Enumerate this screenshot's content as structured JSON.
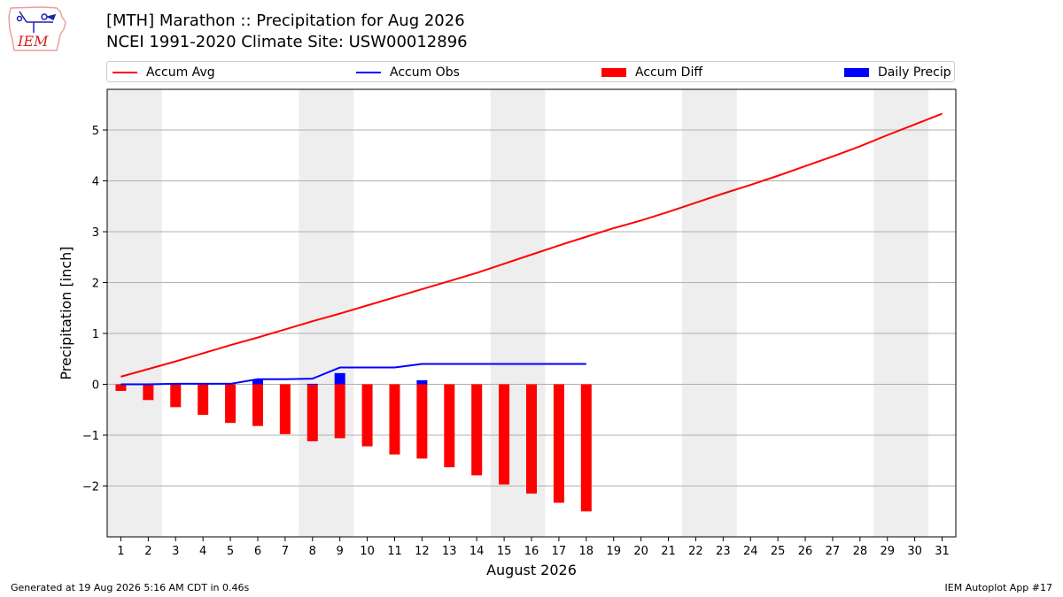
{
  "header": {
    "title_line1": "[MTH] Marathon :: Precipitation for Aug 2026",
    "title_line2": "NCEI 1991-2020 Climate Site: USW00012896",
    "logo_text": "IEM"
  },
  "legend": {
    "items": [
      {
        "label": "Accum Avg",
        "color": "#ff0000",
        "kind": "line"
      },
      {
        "label": "Accum Obs",
        "color": "#0000ff",
        "kind": "line"
      },
      {
        "label": "Accum Diff",
        "color": "#ff0000",
        "kind": "bar"
      },
      {
        "label": "Daily Precip",
        "color": "#0000ff",
        "kind": "bar"
      }
    ]
  },
  "footer": {
    "left": "Generated at 19 Aug 2026 5:16 AM CDT in 0.46s",
    "right": "IEM Autoplot App #17"
  },
  "chart_data": {
    "type": "bar",
    "xlabel": "August 2026",
    "ylabel": "Precipitation [inch]",
    "xlim": [
      0.5,
      31.5
    ],
    "ylim": [
      -3.0,
      5.8
    ],
    "x_ticks": [
      1,
      2,
      3,
      4,
      5,
      6,
      7,
      8,
      9,
      10,
      11,
      12,
      13,
      14,
      15,
      16,
      17,
      18,
      19,
      20,
      21,
      22,
      23,
      24,
      25,
      26,
      27,
      28,
      29,
      30,
      31
    ],
    "y_ticks": [
      -2,
      -1,
      0,
      1,
      2,
      3,
      4,
      5
    ],
    "y_tick_labels": [
      "−2",
      "−1",
      "0",
      "1",
      "2",
      "3",
      "4",
      "5"
    ],
    "grid": "horizontal",
    "weekend_shading": [
      [
        0.5,
        2.5
      ],
      [
        7.5,
        9.5
      ],
      [
        14.5,
        16.5
      ],
      [
        21.5,
        23.5
      ],
      [
        28.5,
        30.5
      ]
    ],
    "shade_color": "#eeeeee",
    "series": [
      {
        "name": "Accum Avg",
        "kind": "line",
        "color": "#ff0000",
        "x": [
          1,
          2,
          3,
          4,
          5,
          6,
          7,
          8,
          9,
          10,
          11,
          12,
          13,
          14,
          15,
          16,
          17,
          18,
          19,
          20,
          21,
          22,
          23,
          24,
          25,
          26,
          27,
          28,
          29,
          30,
          31
        ],
        "values": [
          0.15,
          0.3,
          0.45,
          0.61,
          0.77,
          0.92,
          1.08,
          1.24,
          1.39,
          1.55,
          1.71,
          1.87,
          2.03,
          2.19,
          2.37,
          2.55,
          2.73,
          2.9,
          3.07,
          3.22,
          3.39,
          3.57,
          3.75,
          3.92,
          4.1,
          4.29,
          4.48,
          4.68,
          4.9,
          5.11,
          5.32
        ]
      },
      {
        "name": "Accum Obs",
        "kind": "line",
        "color": "#0000ff",
        "x": [
          1,
          2,
          3,
          4,
          5,
          6,
          7,
          8,
          9,
          10,
          11,
          12,
          13,
          14,
          15,
          16,
          17,
          18
        ],
        "values": [
          0.0,
          0.0,
          0.01,
          0.01,
          0.01,
          0.1,
          0.1,
          0.11,
          0.33,
          0.33,
          0.33,
          0.4,
          0.4,
          0.4,
          0.4,
          0.4,
          0.4,
          0.4
        ]
      },
      {
        "name": "Accum Diff",
        "kind": "bar",
        "color": "#ff0000",
        "x": [
          1,
          2,
          3,
          4,
          5,
          6,
          7,
          8,
          9,
          10,
          11,
          12,
          13,
          14,
          15,
          16,
          17,
          18
        ],
        "values": [
          -0.13,
          -0.31,
          -0.45,
          -0.6,
          -0.76,
          -0.82,
          -0.98,
          -1.12,
          -1.06,
          -1.22,
          -1.38,
          -1.46,
          -1.63,
          -1.79,
          -1.97,
          -2.15,
          -2.33,
          -2.5
        ]
      },
      {
        "name": "Daily Precip",
        "kind": "bar",
        "color": "#0000ff",
        "x": [
          1,
          2,
          3,
          4,
          5,
          6,
          7,
          8,
          9,
          10,
          11,
          12,
          13,
          14,
          15,
          16,
          17,
          18
        ],
        "values": [
          0,
          0,
          0.01,
          0,
          0,
          0.09,
          0,
          0.01,
          0.22,
          0,
          0,
          0.08,
          0,
          0,
          0,
          0,
          0,
          0
        ]
      }
    ]
  }
}
